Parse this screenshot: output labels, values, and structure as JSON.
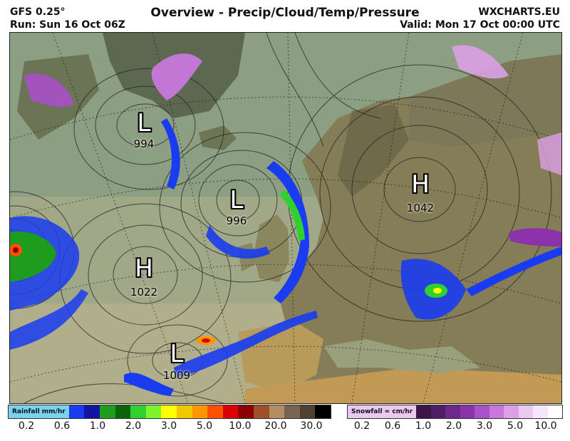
{
  "header": {
    "model": "GFS 0.25°",
    "run": "Run: Sun 16 Oct 06Z",
    "title": "Overview - Precip/Cloud/Temp/Pressure",
    "site": "WXCHARTS.EU",
    "valid": "Valid: Mon 17 Oct 00:00 UTC"
  },
  "pressure_systems": [
    {
      "type": "L",
      "value": "994",
      "location": "near Greenland"
    },
    {
      "type": "L",
      "value": "996",
      "location": "west of Ireland"
    },
    {
      "type": "H",
      "value": "1022",
      "location": "central Atlantic"
    },
    {
      "type": "H",
      "value": "1042",
      "location": "western Russia"
    },
    {
      "type": "L",
      "value": "1009",
      "location": "off Iberia / Atlantic"
    }
  ],
  "rain_legend": {
    "title": "Rainfall mm/hr",
    "colors": [
      "#1a3cf0",
      "#1414a0",
      "#1e9c1e",
      "#0a640a",
      "#2fd02f",
      "#7df52d",
      "#ffff00",
      "#f0c800",
      "#ff9600",
      "#ff5000",
      "#dc0000",
      "#8c0000",
      "#a05028",
      "#b48c64",
      "#786450",
      "#504032",
      "#000000"
    ],
    "ticks": [
      "0.2",
      "0.6",
      "1.0",
      "2.0",
      "3.0",
      "5.0",
      "10.0",
      "20.0",
      "30.0"
    ]
  },
  "snow_legend": {
    "title": "Snowfall ≈ cm/hr",
    "colors": [
      "#3c1446",
      "#501e64",
      "#6e288c",
      "#8c32aa",
      "#aa50c8",
      "#c878dc",
      "#dca0e6",
      "#ebc8f0",
      "#f5e6fa",
      "#ffffff"
    ],
    "ticks": [
      "0.2",
      "0.6",
      "1.0",
      "2.0",
      "3.0",
      "5.0",
      "10.0"
    ]
  }
}
